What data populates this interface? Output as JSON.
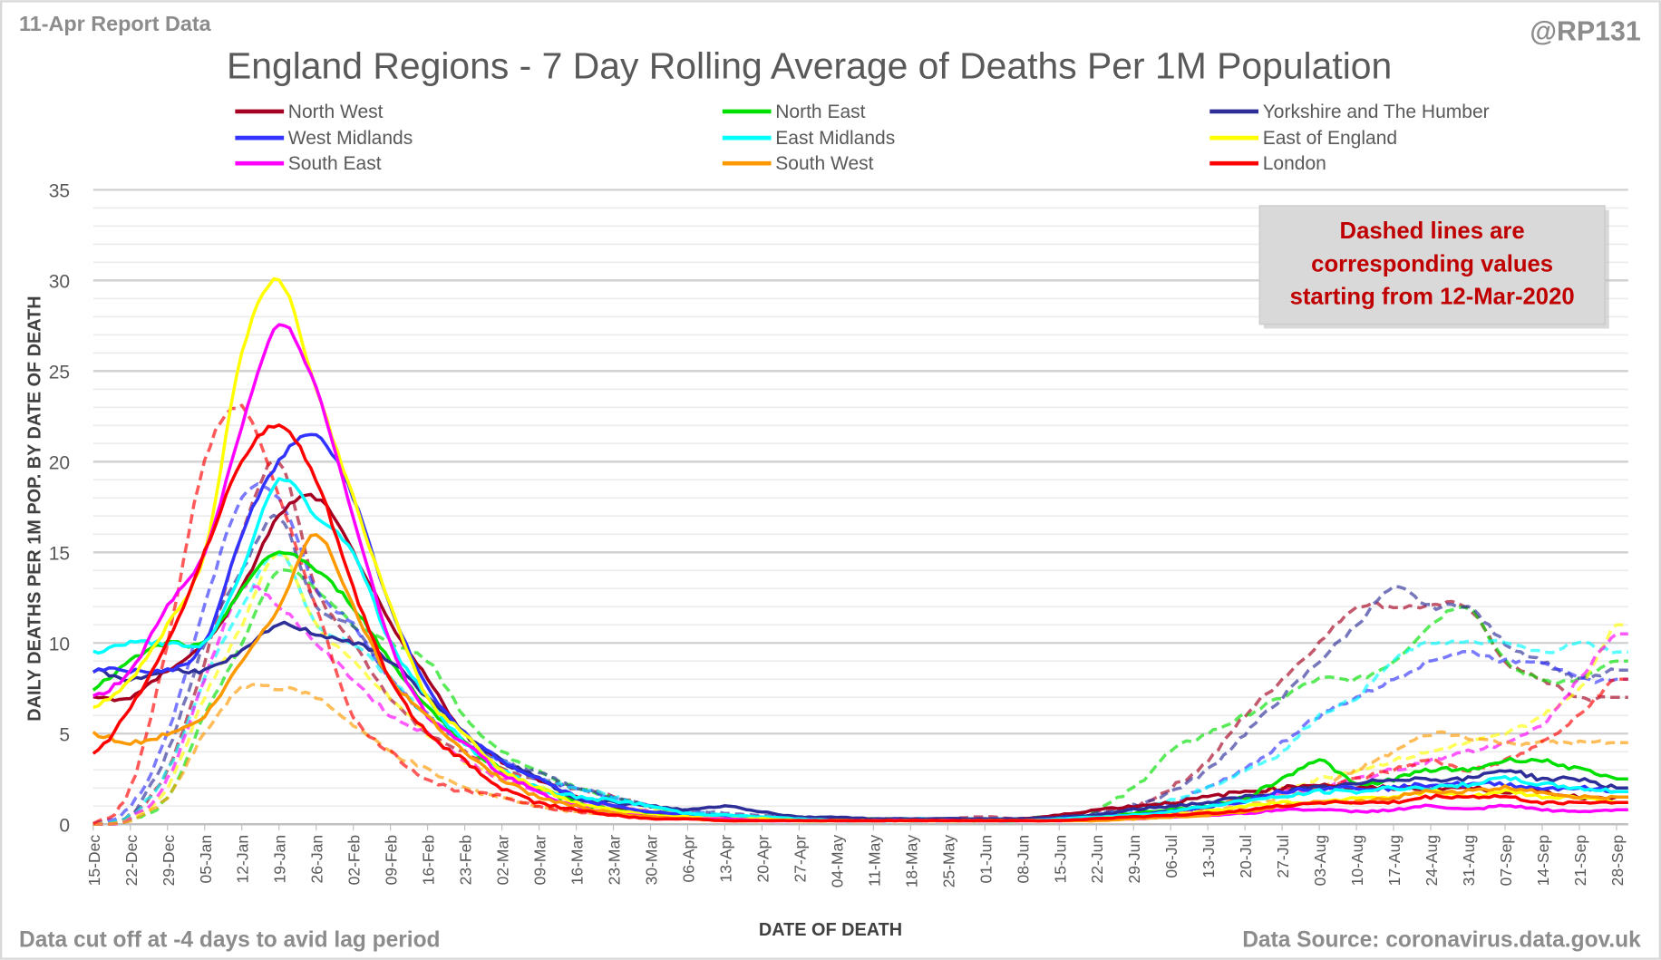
{
  "header": {
    "report_label": "11-Apr Report Data",
    "handle": "@RP131",
    "footer_left": "Data cut off at -4 days to avid lag period",
    "footer_right": "Data Source: coronavirus.data.gov.uk"
  },
  "chart_data": {
    "type": "line",
    "title": "England Regions - 7 Day Rolling Average of Deaths Per 1M Population",
    "xlabel": "DATE OF DEATH",
    "ylabel": "DAILY DEATHS PER 1M POP. BY DATE OF DEATH",
    "ylim": [
      0,
      35
    ],
    "yticks": [
      0,
      5,
      10,
      15,
      20,
      25,
      30,
      35
    ],
    "grid": true,
    "legend_position": "top",
    "annotation": [
      "Dashed lines are",
      "corresponding values",
      "starting from 12-Mar-2020"
    ],
    "annotation_color": "#C00000",
    "categories": [
      "15-Dec",
      "22-Dec",
      "29-Dec",
      "05-Jan",
      "12-Jan",
      "19-Jan",
      "26-Jan",
      "02-Feb",
      "09-Feb",
      "16-Feb",
      "23-Feb",
      "02-Mar",
      "09-Mar",
      "16-Mar",
      "23-Mar",
      "30-Mar",
      "06-Apr",
      "13-Apr",
      "20-Apr",
      "27-Apr",
      "04-May",
      "11-May",
      "18-May",
      "25-May",
      "01-Jun",
      "08-Jun",
      "15-Jun",
      "22-Jun",
      "29-Jun",
      "06-Jul",
      "13-Jul",
      "20-Jul",
      "27-Jul",
      "03-Aug",
      "10-Aug",
      "17-Aug",
      "24-Aug",
      "31-Aug",
      "07-Sep",
      "14-Sep",
      "21-Sep",
      "28-Sep"
    ],
    "series": [
      {
        "name": "North West",
        "color": "#A50021",
        "dashed": false,
        "values": [
          7,
          7,
          8.5,
          10,
          13,
          17,
          18,
          15,
          11,
          8,
          5,
          3.5,
          2.5,
          1.5,
          1,
          0.6,
          0.5,
          0.4,
          0.3,
          0.3,
          0.2,
          0.2,
          0.2,
          0.2,
          0.2,
          0.3,
          0.5,
          0.8,
          1,
          1.2,
          1.5,
          1.8,
          2,
          2.2,
          2,
          2,
          2,
          2,
          1.8,
          1.8,
          1.5,
          1.5
        ]
      },
      {
        "name": "North East",
        "color": "#00E000",
        "dashed": false,
        "values": [
          7.5,
          9,
          10,
          10,
          13,
          15,
          14,
          12,
          9,
          6.5,
          4.5,
          3,
          2,
          1.2,
          0.8,
          0.5,
          0.4,
          0.3,
          0.3,
          0.2,
          0.2,
          0.2,
          0.2,
          0.2,
          0.2,
          0.2,
          0.3,
          0.4,
          0.6,
          0.8,
          1,
          1.5,
          2.5,
          3.5,
          2.2,
          2.5,
          3,
          3,
          3.5,
          3.5,
          3,
          2.5
        ]
      },
      {
        "name": "Yorkshire and The Humber",
        "color": "#2E2E99",
        "dashed": false,
        "values": [
          8.5,
          8,
          8.5,
          8.5,
          9.5,
          11,
          10.5,
          10,
          9,
          7,
          5,
          3.5,
          2.5,
          1.5,
          1.2,
          1,
          0.8,
          1,
          0.7,
          0.4,
          0.4,
          0.3,
          0.3,
          0.3,
          0.3,
          0.3,
          0.4,
          0.5,
          0.8,
          1,
          1.2,
          1.5,
          1.8,
          2,
          2.2,
          2.5,
          2.5,
          2.5,
          3,
          2.5,
          2.5,
          2
        ]
      },
      {
        "name": "West Midlands",
        "color": "#3333FF",
        "dashed": false,
        "values": [
          8.5,
          8.5,
          8.5,
          10,
          16,
          20,
          21.5,
          18,
          12,
          7.5,
          5,
          3.5,
          2.5,
          1.5,
          1,
          0.7,
          0.5,
          0.4,
          0.3,
          0.3,
          0.2,
          0.2,
          0.2,
          0.2,
          0.2,
          0.2,
          0.3,
          0.4,
          0.5,
          0.7,
          1,
          1.3,
          1.8,
          2,
          2,
          2,
          2.2,
          2.2,
          2.2,
          2,
          2,
          1.8
        ]
      },
      {
        "name": "East Midlands",
        "color": "#00FFFF",
        "dashed": false,
        "values": [
          9.5,
          10,
          10,
          10,
          14,
          19,
          17,
          15,
          10,
          7,
          4.5,
          3,
          2,
          1.5,
          1.3,
          1,
          0.6,
          0.5,
          0.4,
          0.3,
          0.2,
          0.2,
          0.2,
          0.2,
          0.2,
          0.2,
          0.3,
          0.4,
          0.5,
          0.7,
          1,
          1.3,
          1.5,
          1.8,
          1.8,
          2,
          2,
          2.2,
          2.5,
          2.2,
          2,
          1.8
        ]
      },
      {
        "name": "East of England",
        "color": "#FFFF00",
        "dashed": false,
        "values": [
          6.5,
          8,
          11,
          15,
          26,
          30,
          24,
          18,
          12,
          7,
          5,
          3,
          2,
          1.2,
          0.8,
          0.5,
          0.4,
          0.3,
          0.3,
          0.2,
          0.2,
          0.2,
          0.2,
          0.2,
          0.2,
          0.2,
          0.2,
          0.3,
          0.4,
          0.5,
          0.7,
          1,
          1.2,
          1.2,
          1.5,
          1.5,
          1.8,
          1.5,
          1.8,
          1.5,
          1.5,
          1.2
        ]
      },
      {
        "name": "South East",
        "color": "#FF00FF",
        "dashed": false,
        "values": [
          7,
          8.5,
          12,
          15,
          22,
          27.5,
          24,
          17,
          10,
          6,
          4.5,
          2.8,
          1.8,
          1,
          0.6,
          0.4,
          0.3,
          0.3,
          0.2,
          0.2,
          0.2,
          0.2,
          0.2,
          0.2,
          0.2,
          0.2,
          0.2,
          0.3,
          0.3,
          0.4,
          0.5,
          0.6,
          0.8,
          0.8,
          0.7,
          0.8,
          1,
          0.8,
          1,
          0.8,
          0.7,
          0.8
        ]
      },
      {
        "name": "South West",
        "color": "#FF9900",
        "dashed": false,
        "values": [
          5,
          4.5,
          5,
          6,
          9,
          12,
          16,
          12,
          8,
          6,
          4,
          2.5,
          1.5,
          1,
          0.6,
          0.4,
          0.3,
          0.2,
          0.2,
          0.2,
          0.2,
          0.2,
          0.2,
          0.2,
          0.2,
          0.2,
          0.2,
          0.2,
          0.3,
          0.4,
          0.5,
          0.7,
          1,
          1.2,
          1.2,
          1.5,
          1.8,
          1.8,
          2,
          1.8,
          1.5,
          1.5
        ]
      },
      {
        "name": "London",
        "color": "#FF0000",
        "dashed": false,
        "values": [
          3.8,
          6.5,
          10,
          15,
          20,
          22,
          19,
          13,
          8,
          5,
          3.5,
          2,
          1.2,
          0.8,
          0.5,
          0.3,
          0.3,
          0.2,
          0.2,
          0.2,
          0.2,
          0.2,
          0.2,
          0.2,
          0.2,
          0.2,
          0.2,
          0.3,
          0.4,
          0.5,
          0.6,
          0.8,
          1,
          1.2,
          1.2,
          1.2,
          1.5,
          1.5,
          1.5,
          1.2,
          1.2,
          1.2
        ]
      },
      {
        "color": "#A50021",
        "dashed": true,
        "values": [
          0,
          0.5,
          3,
          9,
          16,
          20,
          13,
          10,
          7,
          5,
          4,
          3,
          2.5,
          2,
          1.5,
          1,
          0.6,
          0.5,
          0.4,
          0.3,
          0.3,
          0.3,
          0.3,
          0.3,
          0.4,
          0.3,
          0.5,
          0.7,
          1,
          2,
          3.5,
          6,
          8,
          10,
          12,
          12,
          12,
          12,
          9,
          8,
          7,
          7
        ]
      },
      {
        "color": "#00E000",
        "dashed": true,
        "values": [
          0,
          0.2,
          1.5,
          6,
          10,
          14,
          13,
          11,
          10,
          9,
          6,
          4,
          3,
          2,
          1.5,
          1,
          0.6,
          0.5,
          0.4,
          0.3,
          0.3,
          0.3,
          0.3,
          0.2,
          0.2,
          0.3,
          0.5,
          0.8,
          2,
          4,
          5,
          6,
          7,
          8,
          8,
          9,
          11,
          12,
          9,
          8,
          8,
          9
        ]
      },
      {
        "color": "#2E2E99",
        "dashed": true,
        "values": [
          0,
          0.5,
          4,
          10,
          14,
          17,
          12,
          11,
          8,
          6,
          4.5,
          3.5,
          2.8,
          2,
          1.5,
          1,
          0.8,
          0.6,
          0.5,
          0.4,
          0.3,
          0.3,
          0.3,
          0.3,
          0.3,
          0.3,
          0.4,
          0.6,
          1,
          1.8,
          3,
          5,
          7,
          9,
          11,
          13,
          12,
          12,
          10,
          9,
          8,
          8.5
        ]
      },
      {
        "color": "#3333FF",
        "dashed": true,
        "values": [
          0,
          1,
          5,
          12,
          18,
          18,
          13,
          11,
          8,
          6,
          4.5,
          3.5,
          2.5,
          2,
          1.5,
          1,
          0.7,
          0.5,
          0.4,
          0.3,
          0.3,
          0.3,
          0.3,
          0.3,
          0.3,
          0.3,
          0.3,
          0.5,
          0.8,
          1.2,
          2,
          3,
          4.5,
          6,
          7,
          8,
          9,
          9.5,
          9,
          9,
          8,
          8
        ]
      },
      {
        "color": "#00FFFF",
        "dashed": true,
        "values": [
          0,
          0.5,
          3,
          8,
          12,
          15,
          11,
          10,
          8,
          6,
          4.5,
          3.5,
          2.5,
          2,
          1.5,
          1,
          0.7,
          0.5,
          0.4,
          0.3,
          0.3,
          0.3,
          0.3,
          0.3,
          0.3,
          0.3,
          0.3,
          0.5,
          0.8,
          1.3,
          2,
          3,
          4,
          6,
          7,
          9,
          10,
          10,
          10,
          9.5,
          10,
          9.5
        ]
      },
      {
        "color": "#FFFF00",
        "dashed": true,
        "values": [
          0,
          0.3,
          2,
          7,
          11,
          15,
          11,
          9,
          7,
          5,
          3.5,
          2.5,
          2,
          1.5,
          1,
          0.8,
          0.5,
          0.4,
          0.3,
          0.3,
          0.3,
          0.3,
          0.2,
          0.2,
          0.2,
          0.2,
          0.2,
          0.3,
          0.5,
          0.8,
          1,
          1.5,
          2,
          2.5,
          3,
          3.5,
          4,
          4.5,
          5,
          6,
          7.5,
          11
        ]
      },
      {
        "color": "#FF00FF",
        "dashed": true,
        "values": [
          0,
          0.3,
          2.5,
          8,
          13,
          12,
          10,
          8,
          6,
          5,
          3.5,
          2.5,
          1.8,
          1.3,
          1,
          0.7,
          0.5,
          0.4,
          0.3,
          0.3,
          0.2,
          0.2,
          0.2,
          0.2,
          0.2,
          0.2,
          0.2,
          0.3,
          0.5,
          0.7,
          1,
          1.3,
          1.8,
          2,
          2.5,
          3,
          3.5,
          4,
          4.5,
          5.5,
          8,
          10.5
        ]
      },
      {
        "color": "#FF9900",
        "dashed": true,
        "values": [
          0,
          0.2,
          1.5,
          5,
          7.5,
          7.5,
          7,
          5.5,
          4,
          3,
          2,
          1.5,
          1,
          0.7,
          0.5,
          0.4,
          0.3,
          0.3,
          0.2,
          0.2,
          0.2,
          0.2,
          0.2,
          0.2,
          0.2,
          0.2,
          0.2,
          0.3,
          0.4,
          0.6,
          0.8,
          1,
          1.5,
          2,
          3,
          4,
          5,
          4.8,
          4.5,
          4.5,
          4.5,
          4.5
        ]
      },
      {
        "color": "#FF0000",
        "dashed": true,
        "values": [
          0,
          2,
          10,
          20,
          23,
          18,
          12,
          6,
          4,
          2.5,
          1.8,
          1.5,
          1,
          0.7,
          0.5,
          0.4,
          0.3,
          0.3,
          0.2,
          0.2,
          0.2,
          0.2,
          0.2,
          0.2,
          0.2,
          0.2,
          0.2,
          0.3,
          0.4,
          0.6,
          1,
          1.5,
          2,
          2,
          2.5,
          3,
          3.5,
          3,
          3.5,
          4.5,
          6,
          8
        ]
      }
    ]
  }
}
